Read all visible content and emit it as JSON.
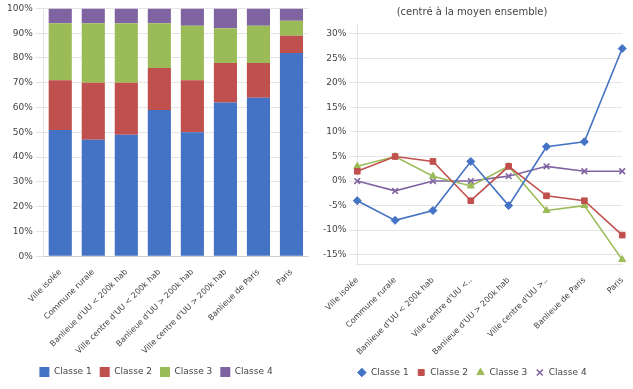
{
  "chart_data": [
    {
      "type": "bar",
      "stacked": true,
      "categories": [
        "Ville isolée",
        "Commune rurale",
        "Banlieue d'UU < 200k hab",
        "Ville centre d'UU < 200k hab",
        "Banlieue d'UU > 200k hab",
        "Ville centre d'UU > 200k hab",
        "Banlieue de Paris",
        "Paris"
      ],
      "series": [
        {
          "name": "Classe 1",
          "color": "#4472C4",
          "values": [
            51,
            47,
            49,
            59,
            50,
            62,
            64,
            82
          ]
        },
        {
          "name": "Classe 2",
          "color": "#C0504D",
          "values": [
            20,
            23,
            21,
            17,
            21,
            16,
            14,
            7
          ]
        },
        {
          "name": "Classe 3",
          "color": "#9BBB59",
          "values": [
            23,
            24,
            24,
            18,
            22,
            14,
            15,
            6
          ]
        },
        {
          "name": "Classe 4",
          "color": "#8064A2",
          "values": [
            6,
            6,
            6,
            6,
            7,
            8,
            7,
            5
          ]
        }
      ],
      "ylim": [
        0,
        100
      ],
      "yticks": [
        {
          "value": 0,
          "label": "0%"
        },
        {
          "value": 10,
          "label": "10%"
        },
        {
          "value": 20,
          "label": "20%"
        },
        {
          "value": 30,
          "label": "30%"
        },
        {
          "value": 40,
          "label": "40%"
        },
        {
          "value": 50,
          "label": "50%"
        },
        {
          "value": 60,
          "label": "60%"
        },
        {
          "value": 70,
          "label": "70%"
        },
        {
          "value": 80,
          "label": "80%"
        },
        {
          "value": 90,
          "label": "90%"
        },
        {
          "value": 100,
          "label": "100%"
        }
      ],
      "grid": true,
      "legend": "bottom"
    },
    {
      "type": "line",
      "title": "(centré à la moyen ensemble)",
      "categories": [
        "Ville isolée",
        "Commune rurale",
        "Banlieue d'UU < 200k hab",
        "Ville centre d'UU <..",
        "Banlieue d'UU > 200k hab",
        "Ville centre d'UU >..",
        "Banlieue de Paris",
        "Paris"
      ],
      "series": [
        {
          "name": "Classe 1",
          "color": "#4472C4",
          "marker": "diamond",
          "values": [
            -4,
            -8,
            -6,
            4,
            -5,
            7,
            8,
            27
          ]
        },
        {
          "name": "Classe 2",
          "color": "#C0504D",
          "marker": "square",
          "values": [
            2,
            5,
            4,
            -4,
            3,
            -3,
            -4,
            -11
          ]
        },
        {
          "name": "Classe 3",
          "color": "#9BBB59",
          "marker": "triangle",
          "values": [
            3,
            5,
            1,
            -1,
            3,
            -6,
            -5,
            -16
          ]
        },
        {
          "name": "Classe 4",
          "color": "#8064A2",
          "marker": "x",
          "values": [
            0,
            -2,
            0,
            0,
            1,
            3,
            2,
            2
          ]
        }
      ],
      "ylim": [
        -17,
        32
      ],
      "yticks": [
        {
          "value": -15,
          "label": "-15%"
        },
        {
          "value": -10,
          "label": "-10%"
        },
        {
          "value": -5,
          "label": "-5%"
        },
        {
          "value": 0,
          "label": "0%"
        },
        {
          "value": 5,
          "label": "5%"
        },
        {
          "value": 10,
          "label": "10%"
        },
        {
          "value": 15,
          "label": "15%"
        },
        {
          "value": 20,
          "label": "20%"
        },
        {
          "value": 25,
          "label": "25%"
        },
        {
          "value": 30,
          "label": "30%"
        }
      ],
      "grid": true,
      "legend": "bottom"
    }
  ]
}
